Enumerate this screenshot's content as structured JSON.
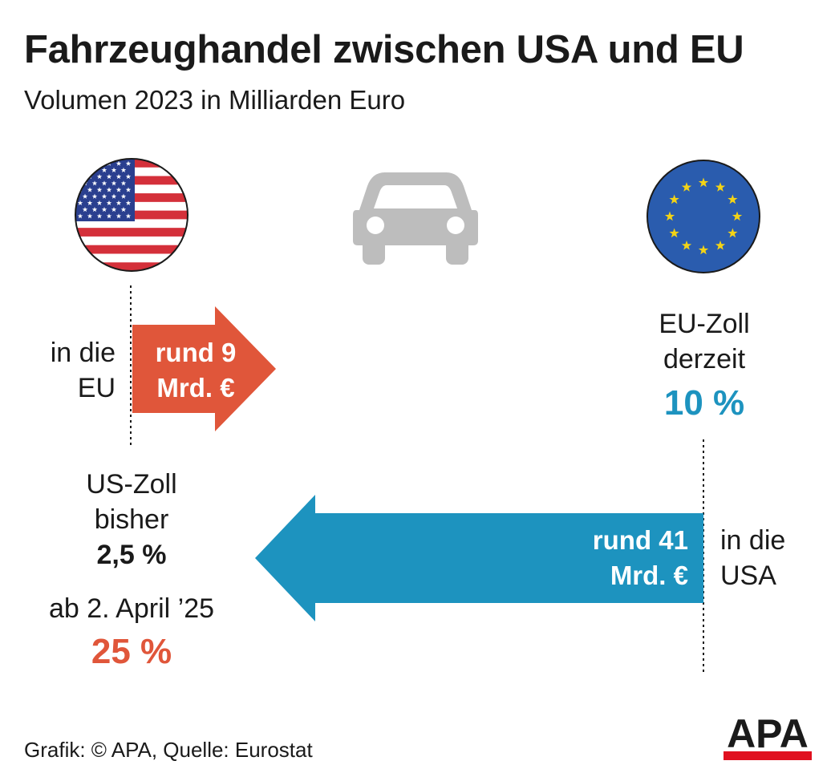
{
  "title": "Fahrzeughandel zwischen USA und EU",
  "subtitle": "Volumen 2023 in Milliarden Euro",
  "icons": {
    "us_flag": "us-flag-icon",
    "eu_flag": "eu-flag-icon",
    "car": "car-icon"
  },
  "colors": {
    "orange": "#e0563a",
    "blue": "#1d93bf",
    "grey": "#bdbdbd",
    "eu_blue": "#2a5cae",
    "eu_star": "#f3d316"
  },
  "us_to_eu": {
    "direction_label_1": "in die",
    "direction_label_2": "EU",
    "amount_line_1": "rund 9",
    "amount_line_2": "Mrd. €",
    "value_bn_eur": 9
  },
  "eu_to_us": {
    "direction_label_1": "in die",
    "direction_label_2": "USA",
    "amount_line_1": "rund 41",
    "amount_line_2": "Mrd. €",
    "value_bn_eur": 41
  },
  "eu_tariff": {
    "line_1": "EU-Zoll",
    "line_2": "derzeit",
    "value": "10 %"
  },
  "us_tariff": {
    "line_1": "US-Zoll",
    "line_2": "bisher",
    "value_old": "2,5 %",
    "date_label": "ab 2. April ’25",
    "value_new": "25 %"
  },
  "footer": "Grafik: © APA, Quelle: Eurostat",
  "logo_text": "APA"
}
